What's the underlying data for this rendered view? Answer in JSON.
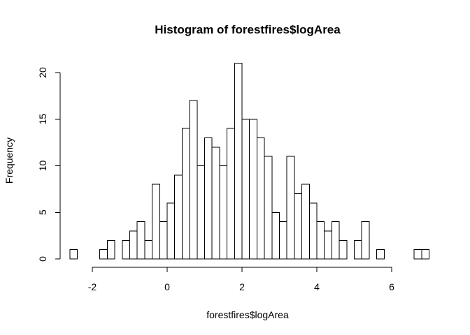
{
  "chart_data": {
    "type": "bar",
    "title": "Histogram of forestfires$logArea",
    "xlabel": "forestfires$logArea",
    "ylabel": "Frequency",
    "bin_width": 0.2,
    "bins": [
      {
        "x0": -2.6,
        "count": 1
      },
      {
        "x0": -2.4,
        "count": 0
      },
      {
        "x0": -2.2,
        "count": 0
      },
      {
        "x0": -2.0,
        "count": 0
      },
      {
        "x0": -1.8,
        "count": 1
      },
      {
        "x0": -1.6,
        "count": 2
      },
      {
        "x0": -1.4,
        "count": 0
      },
      {
        "x0": -1.2,
        "count": 2
      },
      {
        "x0": -1.0,
        "count": 3
      },
      {
        "x0": -0.8,
        "count": 4
      },
      {
        "x0": -0.6,
        "count": 2
      },
      {
        "x0": -0.4,
        "count": 8
      },
      {
        "x0": -0.2,
        "count": 4
      },
      {
        "x0": 0.0,
        "count": 6
      },
      {
        "x0": 0.2,
        "count": 9
      },
      {
        "x0": 0.4,
        "count": 14
      },
      {
        "x0": 0.6,
        "count": 17
      },
      {
        "x0": 0.8,
        "count": 10
      },
      {
        "x0": 1.0,
        "count": 13
      },
      {
        "x0": 1.2,
        "count": 12
      },
      {
        "x0": 1.4,
        "count": 10
      },
      {
        "x0": 1.6,
        "count": 14
      },
      {
        "x0": 1.8,
        "count": 21
      },
      {
        "x0": 2.0,
        "count": 15
      },
      {
        "x0": 2.2,
        "count": 15
      },
      {
        "x0": 2.4,
        "count": 13
      },
      {
        "x0": 2.6,
        "count": 11
      },
      {
        "x0": 2.8,
        "count": 5
      },
      {
        "x0": 3.0,
        "count": 4
      },
      {
        "x0": 3.2,
        "count": 11
      },
      {
        "x0": 3.4,
        "count": 7
      },
      {
        "x0": 3.6,
        "count": 8
      },
      {
        "x0": 3.8,
        "count": 6
      },
      {
        "x0": 4.0,
        "count": 4
      },
      {
        "x0": 4.2,
        "count": 3
      },
      {
        "x0": 4.4,
        "count": 4
      },
      {
        "x0": 4.6,
        "count": 2
      },
      {
        "x0": 4.8,
        "count": 0
      },
      {
        "x0": 5.0,
        "count": 2
      },
      {
        "x0": 5.2,
        "count": 4
      },
      {
        "x0": 5.4,
        "count": 0
      },
      {
        "x0": 5.6,
        "count": 1
      },
      {
        "x0": 5.8,
        "count": 0
      },
      {
        "x0": 6.0,
        "count": 0
      },
      {
        "x0": 6.2,
        "count": 0
      },
      {
        "x0": 6.4,
        "count": 0
      },
      {
        "x0": 6.6,
        "count": 1
      },
      {
        "x0": 6.8,
        "count": 1
      }
    ],
    "x_ticks": [
      -2,
      0,
      2,
      4,
      6
    ],
    "y_ticks": [
      0,
      5,
      10,
      15,
      20
    ],
    "xlim": [
      -2.6,
      7.0
    ],
    "ylim": [
      0,
      21
    ],
    "grid": false,
    "legend": "none"
  }
}
